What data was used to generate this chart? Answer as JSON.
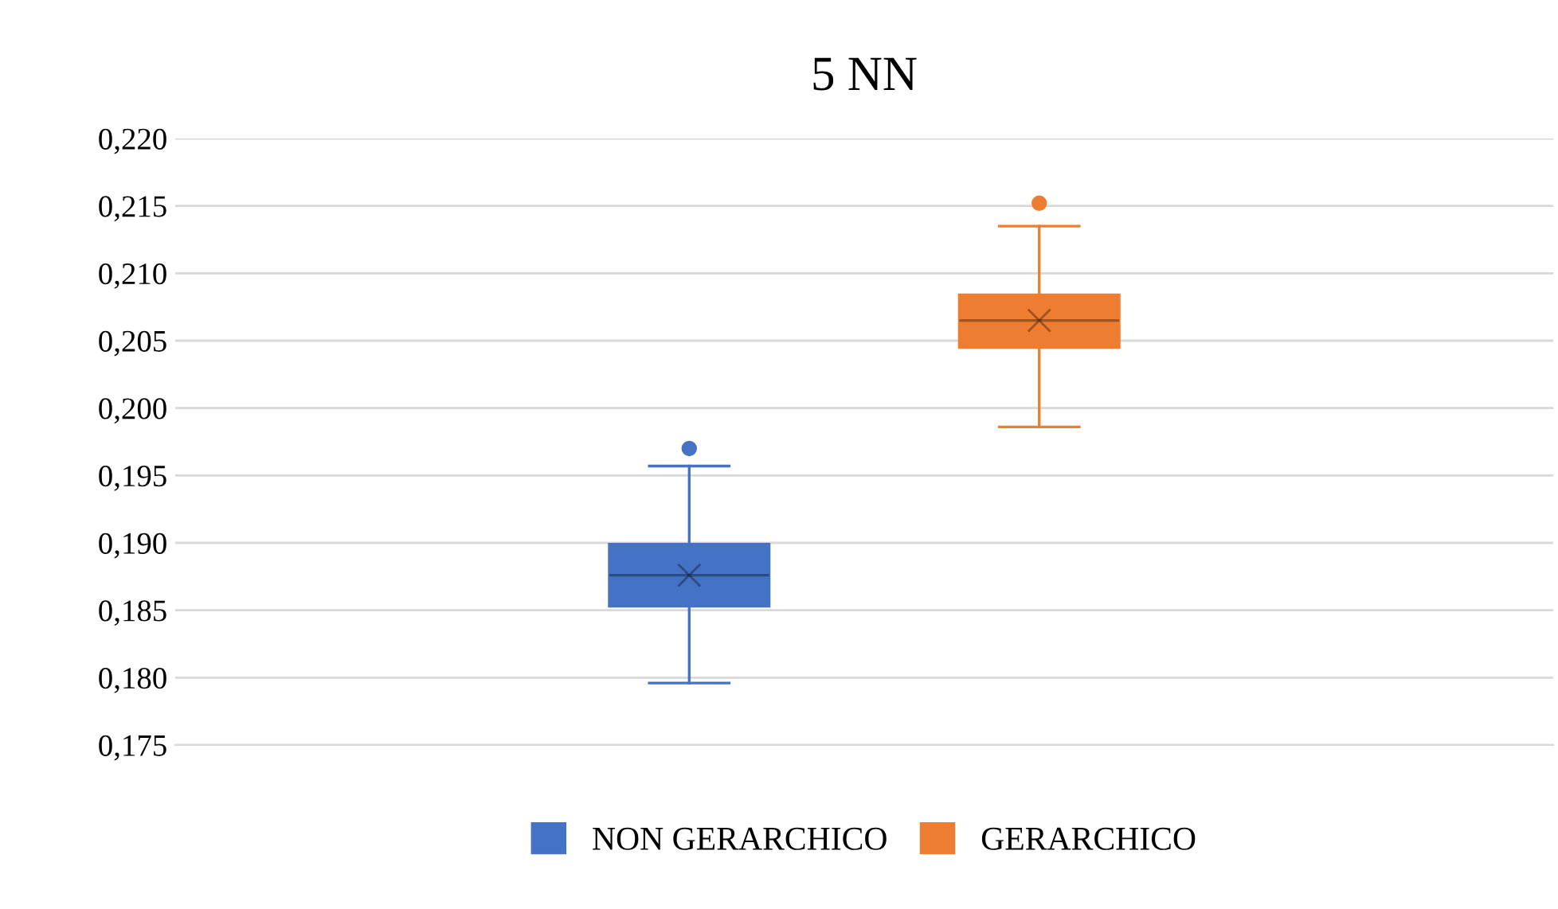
{
  "chart_data": {
    "type": "box",
    "title": "5 NN",
    "categories": [
      null
    ],
    "series": [
      {
        "name": "NON GERARCHICO",
        "color": "#4472c4",
        "boxes": [
          {
            "low": 0.1796,
            "q1": 0.1853,
            "median": 0.1876,
            "q3": 0.1899,
            "high": 0.1957,
            "mean": 0.1876,
            "outliers": [
              0.197
            ]
          }
        ]
      },
      {
        "name": "GERARCHICO",
        "color": "#ed7d31",
        "boxes": [
          {
            "low": 0.1986,
            "q1": 0.2045,
            "median": 0.2065,
            "q3": 0.2084,
            "high": 0.2135,
            "mean": 0.2065,
            "outliers": [
              0.2152
            ]
          }
        ]
      }
    ],
    "ylim": [
      0.175,
      0.22
    ],
    "yticks": [
      {
        "value": 0.175,
        "label": "0,175"
      },
      {
        "value": 0.18,
        "label": "0,180"
      },
      {
        "value": 0.185,
        "label": "0,185"
      },
      {
        "value": 0.19,
        "label": "0,190"
      },
      {
        "value": 0.195,
        "label": "0,195"
      },
      {
        "value": 0.2,
        "label": "0,200"
      },
      {
        "value": 0.205,
        "label": "0,205"
      },
      {
        "value": 0.21,
        "label": "0,210"
      },
      {
        "value": 0.215,
        "label": "0,215"
      },
      {
        "value": 0.22,
        "label": "0,220"
      }
    ],
    "grid": "y",
    "legend": "bottom",
    "tick_labels": "y",
    "marker": "cross"
  }
}
